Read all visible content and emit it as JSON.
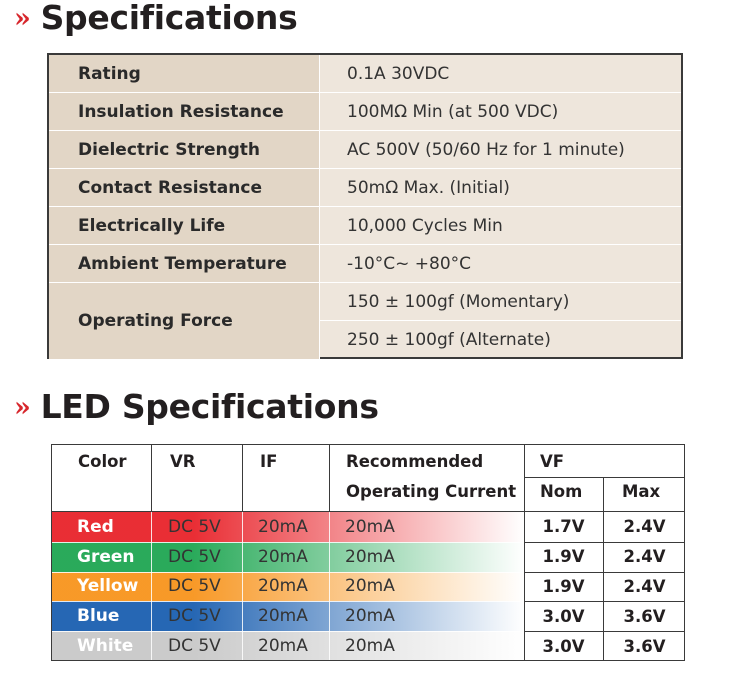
{
  "sections": {
    "spec_title": "Specifications",
    "led_title": "LED Specifications",
    "chevron": "»"
  },
  "specs": [
    {
      "label": "Rating",
      "values": [
        "0.1A 30VDC"
      ]
    },
    {
      "label": "Insulation Resistance",
      "values": [
        "100MΩ Min (at 500 VDC)"
      ]
    },
    {
      "label": "Dielectric Strength",
      "values": [
        "AC 500V (50/60 Hz for 1 minute)"
      ]
    },
    {
      "label": "Contact Resistance",
      "values": [
        "50mΩ Max. (Initial)"
      ]
    },
    {
      "label": "Electrically Life",
      "values": [
        "10,000 Cycles Min"
      ]
    },
    {
      "label": "Ambient Temperature",
      "values": [
        "-10°C~ +80°C"
      ]
    },
    {
      "label": "Operating Force",
      "values": [
        "150 ± 100gf  (Momentary)",
        "250 ± 100gf (Alternate)"
      ]
    }
  ],
  "led": {
    "headers": {
      "color": "Color",
      "vr": "VR",
      "if": "IF",
      "rec_line1": "Recommended",
      "rec_line2": "Operating Current",
      "vf": "VF",
      "nom": "Nom",
      "max": "Max"
    },
    "rows": [
      {
        "name": "Red",
        "vr": "DC 5V",
        "if": "20mA",
        "rec": "20mA",
        "nom": "1.7V",
        "max": "2.4V",
        "color": "#e8232a"
      },
      {
        "name": "Green",
        "vr": "DC 5V",
        "if": "20mA",
        "rec": "20mA",
        "nom": "1.9V",
        "max": "2.4V",
        "color": "#1fa652"
      },
      {
        "name": "Yellow",
        "vr": "DC 5V",
        "if": "20mA",
        "rec": "20mA",
        "nom": "1.9V",
        "max": "2.4V",
        "color": "#f7941d"
      },
      {
        "name": "Blue",
        "vr": "DC 5V",
        "if": "20mA",
        "rec": "20mA",
        "nom": "3.0V",
        "max": "3.6V",
        "color": "#1b5fb0"
      },
      {
        "name": "White",
        "vr": "DC 5V",
        "if": "20mA",
        "rec": "20mA",
        "nom": "3.0V",
        "max": "3.6V",
        "color": "#c8c8c8"
      }
    ]
  },
  "colors": {
    "accent": "#d7262c",
    "spec_label_bg": "#e2d6c6",
    "spec_value_bg": "#eee6dc"
  }
}
